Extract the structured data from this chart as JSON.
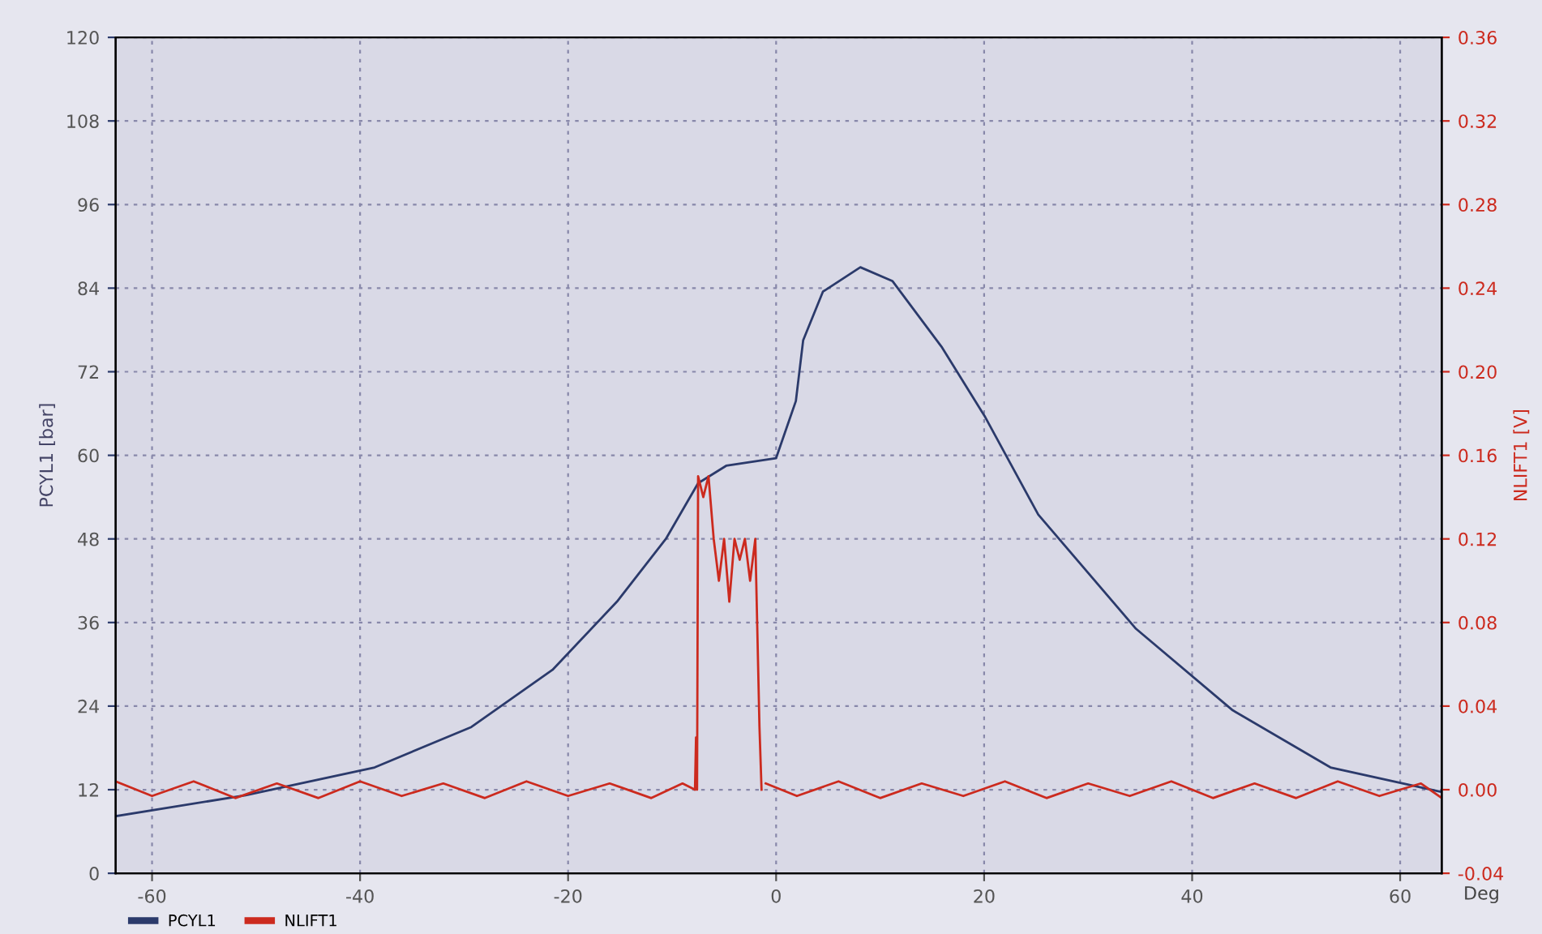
{
  "chart_data": {
    "type": "line",
    "xlabel": "Deg",
    "ylabel": "PCYL1 [bar]",
    "y2label": "NLIFT1 [V]",
    "xlim": [
      -63.5,
      64
    ],
    "xticks": [
      -60,
      -40,
      -20,
      0,
      20,
      40,
      60
    ],
    "ylim": [
      0,
      120
    ],
    "yticks": [
      0,
      12,
      24,
      36,
      48,
      60,
      72,
      84,
      96,
      108,
      120
    ],
    "y2lim": [
      -0.04,
      0.36
    ],
    "y2ticks": [
      {
        "value": -0.04,
        "label": "-0.04"
      },
      {
        "value": 0.0,
        "label": "0.00"
      },
      {
        "value": 0.04,
        "label": "0.04"
      },
      {
        "value": 0.08,
        "label": "0.08"
      },
      {
        "value": 0.12,
        "label": "0.12"
      },
      {
        "value": 0.16,
        "label": "0.16"
      },
      {
        "value": 0.2,
        "label": "0.20"
      },
      {
        "value": 0.24,
        "label": "0.24"
      },
      {
        "value": 0.28,
        "label": "0.28"
      },
      {
        "value": 0.32,
        "label": "0.32"
      },
      {
        "value": 0.36,
        "label": "0.36"
      }
    ],
    "grid": true,
    "legend": "bottom left",
    "marker": "none",
    "line_style": "solid",
    "series": [
      {
        "name": "PCYL1",
        "color": "#2b3a6b",
        "x": [
          -63.5,
          -51,
          -38.6,
          -29.3,
          -21.5,
          -15.3,
          -10.6,
          -7.5,
          -4.8,
          0,
          1.9,
          2.6,
          4.5,
          8.1,
          11.2,
          15.9,
          20.1,
          25.2,
          34.6,
          43.9,
          53.3,
          63.9
        ],
        "values": [
          8.2,
          11.2,
          15.2,
          21,
          29.2,
          39,
          48,
          56,
          58.5,
          59.6,
          67.8,
          76.5,
          83.5,
          87,
          85,
          75.6,
          65.5,
          51.5,
          35.1,
          23.4,
          15.2,
          11.7
        ]
      },
      {
        "name": "NLIFT1",
        "color": "#cc2a1e",
        "axis": "y2",
        "x": [
          -63.5,
          -60,
          -56,
          -52,
          -48,
          -44,
          -40,
          -36,
          -32,
          -28,
          -24,
          -20,
          -16,
          -12,
          -9,
          -7.8,
          -7.7,
          -7.6,
          -7.5,
          -7,
          -6.5,
          -6,
          -5.5,
          -5,
          -4.5,
          -4,
          -3.5,
          -3,
          -2.5,
          -2,
          -1.6,
          -1.4,
          -1.2,
          -1,
          2,
          6,
          10,
          14,
          18,
          22,
          26,
          30,
          34,
          38,
          42,
          46,
          50,
          54,
          58,
          62,
          64
        ],
        "values": [
          0.004,
          -0.003,
          0.004,
          -0.004,
          0.003,
          -0.004,
          0.004,
          -0.003,
          0.003,
          -0.004,
          0.004,
          -0.003,
          0.003,
          -0.004,
          0.003,
          0.0,
          0.025,
          0.0,
          0.15,
          0.14,
          0.15,
          0.12,
          0.1,
          0.12,
          0.09,
          0.12,
          0.11,
          0.12,
          0.1,
          0.12,
          0.03,
          0.0,
          null,
          0.003,
          -0.003,
          0.004,
          -0.004,
          0.003,
          -0.003,
          0.004,
          -0.004,
          0.003,
          -0.003,
          0.004,
          -0.004,
          0.003,
          -0.004,
          0.004,
          -0.003,
          0.003,
          -0.004
        ]
      }
    ]
  }
}
